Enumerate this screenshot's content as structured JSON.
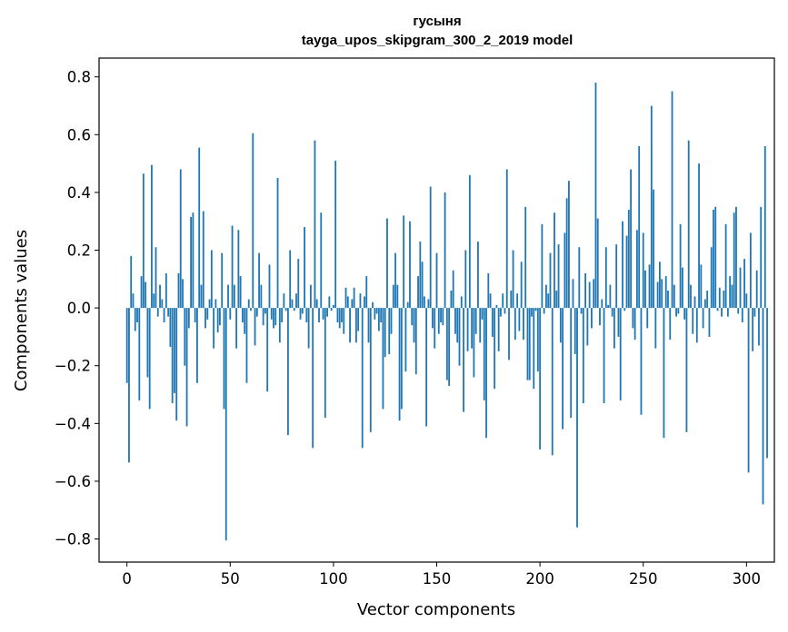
{
  "chart_data": {
    "type": "bar",
    "title": "гусыня",
    "subtitle": "tayga_upos_skipgram_300_2_2019 model",
    "xlabel": "Vector components",
    "ylabel": "Components values",
    "xlim": [
      -13.5,
      313.5
    ],
    "ylim": [
      -0.88,
      0.865
    ],
    "xticks": [
      0,
      50,
      100,
      150,
      200,
      250,
      300
    ],
    "xtick_labels": [
      "0",
      "50",
      "100",
      "150",
      "200",
      "250",
      "300"
    ],
    "yticks": [
      0.8,
      0.6,
      0.4,
      0.2,
      0.0,
      -0.2,
      -0.4,
      -0.6,
      -0.8
    ],
    "ytick_labels": [
      "0.8",
      "0.6",
      "0.4",
      "0.2",
      "0.0",
      "−0.2",
      "−0.4",
      "−0.6",
      "−0.8"
    ],
    "bar_color": "#1f77b4",
    "grid": false,
    "values": [
      -0.26,
      -0.535,
      0.18,
      0.05,
      -0.08,
      -0.05,
      -0.32,
      0.11,
      0.465,
      0.09,
      -0.24,
      -0.35,
      0.495,
      0.05,
      0.21,
      -0.03,
      0.08,
      0.03,
      -0.05,
      0.12,
      -0.03,
      -0.135,
      -0.33,
      -0.295,
      -0.39,
      0.12,
      0.48,
      0.1,
      -0.2,
      -0.41,
      -0.07,
      0.315,
      0.33,
      -0.05,
      -0.26,
      0.555,
      0.08,
      0.335,
      -0.07,
      -0.04,
      0.03,
      0.2,
      -0.14,
      0.03,
      -0.085,
      -0.06,
      0.19,
      -0.35,
      -0.805,
      0.08,
      -0.04,
      0.285,
      0.08,
      -0.14,
      0.27,
      0.11,
      -0.05,
      -0.09,
      -0.26,
      0.03,
      -0.01,
      0.605,
      -0.13,
      -0.03,
      0.19,
      0.08,
      -0.06,
      -0.02,
      -0.29,
      0.15,
      -0.04,
      -0.07,
      -0.06,
      0.45,
      -0.12,
      -0.05,
      0.05,
      -0.01,
      -0.44,
      0.2,
      0.03,
      -0.01,
      0.05,
      0.17,
      -0.04,
      -0.02,
      0.28,
      -0.05,
      -0.14,
      0.08,
      -0.485,
      0.58,
      0.03,
      -0.05,
      0.33,
      -0.04,
      -0.38,
      -0.03,
      0.04,
      -0.01,
      0.01,
      0.51,
      -0.05,
      -0.07,
      -0.05,
      -0.09,
      0.07,
      0.04,
      -0.12,
      0.03,
      0.07,
      -0.12,
      -0.08,
      0.05,
      -0.485,
      0.04,
      0.11,
      -0.12,
      -0.43,
      0.02,
      -0.04,
      -0.02,
      -0.08,
      -0.05,
      -0.35,
      -0.17,
      0.31,
      -0.16,
      -0.09,
      0.08,
      0.19,
      0.08,
      -0.39,
      -0.35,
      0.32,
      -0.22,
      0.02,
      0.3,
      -0.06,
      -0.12,
      -0.23,
      0.11,
      0.23,
      0.16,
      0.04,
      -0.41,
      0.03,
      0.42,
      -0.07,
      -0.14,
      0.19,
      -0.09,
      -0.05,
      -0.06,
      0.4,
      -0.25,
      -0.27,
      0.06,
      0.13,
      -0.09,
      -0.12,
      -0.2,
      0.04,
      -0.36,
      0.2,
      -0.15,
      0.46,
      -0.14,
      -0.24,
      -0.09,
      0.23,
      -0.12,
      -0.04,
      -0.32,
      -0.45,
      0.12,
      0.05,
      -0.1,
      -0.28,
      0.01,
      -0.15,
      -0.03,
      0.05,
      -0.02,
      0.48,
      -0.18,
      0.06,
      0.2,
      -0.11,
      0.05,
      -0.08,
      0.16,
      -0.11,
      0.35,
      -0.25,
      -0.25,
      -0.03,
      -0.28,
      -0.01,
      -0.22,
      -0.49,
      0.29,
      -0.02,
      0.08,
      0.05,
      0.19,
      -0.51,
      0.33,
      0.06,
      0.22,
      -0.12,
      -0.42,
      0.26,
      0.38,
      0.44,
      -0.38,
      0.1,
      -0.16,
      -0.76,
      0.21,
      -0.02,
      -0.33,
      0.12,
      -0.13,
      0.09,
      -0.07,
      0.1,
      0.78,
      0.31,
      -0.06,
      0.03,
      -0.33,
      0.21,
      0.01,
      0.08,
      -0.03,
      -0.14,
      0.22,
      -0.1,
      -0.32,
      0.3,
      -0.01,
      0.25,
      0.34,
      0.48,
      -0.07,
      -0.11,
      0.27,
      0.56,
      -0.37,
      0.26,
      0.13,
      -0.07,
      0.15,
      0.7,
      0.41,
      -0.14,
      0.09,
      0.16,
      0.1,
      -0.45,
      0.11,
      0.06,
      -0.11,
      0.75,
      0.08,
      -0.03,
      -0.02,
      0.29,
      0.14,
      -0.04,
      -0.43,
      0.58,
      0.08,
      -0.09,
      0.04,
      -0.12,
      0.5,
      0.15,
      -0.07,
      0.03,
      0.06,
      -0.1,
      0.21,
      0.34,
      0.35,
      -0.01,
      0.07,
      -0.03,
      0.06,
      0.29,
      -0.03,
      0.11,
      0.08,
      0.33,
      0.35,
      -0.02,
      0.14,
      -0.05,
      0.17,
      0.05,
      -0.57,
      0.26,
      -0.15,
      -0.03,
      0.13,
      -0.13,
      0.35,
      -0.68,
      0.56,
      -0.52
    ]
  }
}
